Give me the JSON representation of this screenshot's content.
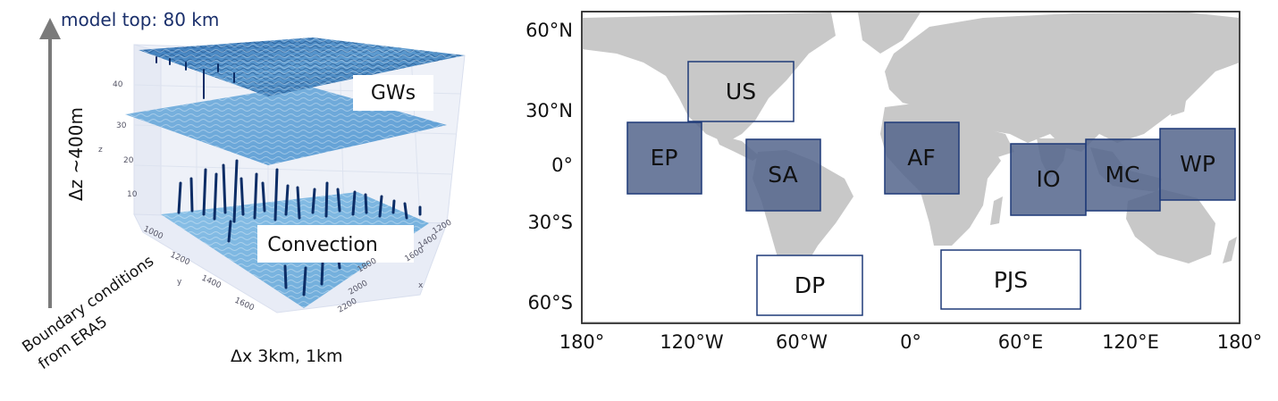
{
  "left_panel": {
    "model_top_label": "model top: 80 km",
    "dz_label": "Δz ~400m",
    "gws_label": "GWs",
    "convection_label": "Convection",
    "boundary_label_line1": "Boundary conditions",
    "boundary_label_line2": "from ERA5",
    "dx_label": "Δx  3km, 1km",
    "z_axis_title": "z",
    "z_ticks": [
      "10",
      "20",
      "30",
      "40"
    ],
    "y_axis_title": "y",
    "y_ticks": [
      "1000",
      "1200",
      "1400",
      "1600"
    ],
    "x_axis_title": "x",
    "x_ticks": [
      "1200",
      "1400",
      "1600",
      "1800",
      "2000",
      "2200"
    ]
  },
  "map_panel": {
    "lat_ticks": [
      "60°N",
      "30°N",
      "0°",
      "30°S",
      "60°S"
    ],
    "lon_ticks": [
      "180°",
      "120°W",
      "60°W",
      "0°",
      "60°E",
      "120°E",
      "180°"
    ],
    "regions": [
      {
        "label": "US",
        "style": "outline"
      },
      {
        "label": "EP",
        "style": "filled"
      },
      {
        "label": "SA",
        "style": "filled"
      },
      {
        "label": "AF",
        "style": "filled"
      },
      {
        "label": "IO",
        "style": "filled"
      },
      {
        "label": "MC",
        "style": "filled"
      },
      {
        "label": "WP",
        "style": "filled"
      },
      {
        "label": "DP",
        "style": "outline"
      },
      {
        "label": "PJS",
        "style": "outline"
      }
    ],
    "colors": {
      "land": "#c8c8c8",
      "region_fill": "#53658c",
      "region_border": "#1f3a78"
    }
  }
}
